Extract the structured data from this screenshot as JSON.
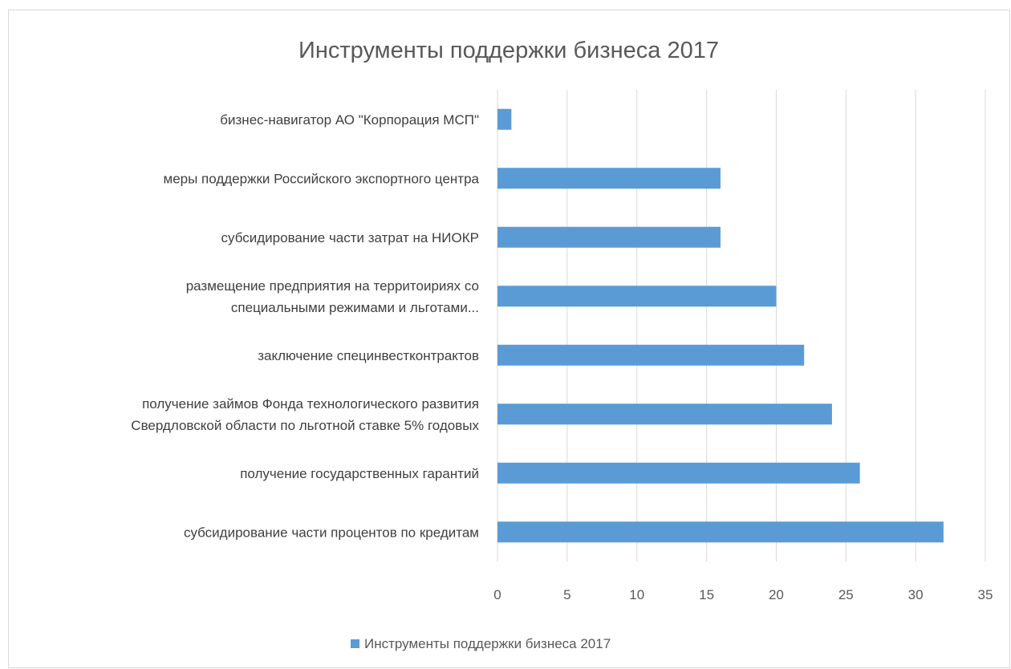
{
  "chart_data": {
    "type": "bar",
    "orientation": "horizontal",
    "title": "Инструменты поддержки бизнеса 2017",
    "categories": [
      [
        "бизнес-навигатор АО \"Корпорация МСП\""
      ],
      [
        "меры поддержки Российского экспортного центра"
      ],
      [
        "субсидирование части затрат на НИОКР"
      ],
      [
        "размещение предприятия на  территоириях со",
        "специальными режимами и льготами..."
      ],
      [
        "заключение специнвестконтрактов"
      ],
      [
        "получение займов Фонда технологического развития",
        "Свердловской области по льготной ставке 5% годовых"
      ],
      [
        "получение государственных гарантий"
      ],
      [
        "субсидирование части процентов по кредитам"
      ]
    ],
    "series": [
      {
        "name": "Инструменты поддержки бизнеса 2017",
        "values": [
          1,
          16,
          16,
          20,
          22,
          24,
          26,
          32
        ],
        "color": "#5b9bd5"
      }
    ],
    "xlim": [
      0,
      35
    ],
    "xticks": [
      0,
      5,
      10,
      15,
      20,
      25,
      30,
      35
    ],
    "grid": "vertical",
    "legend": "bottom"
  }
}
